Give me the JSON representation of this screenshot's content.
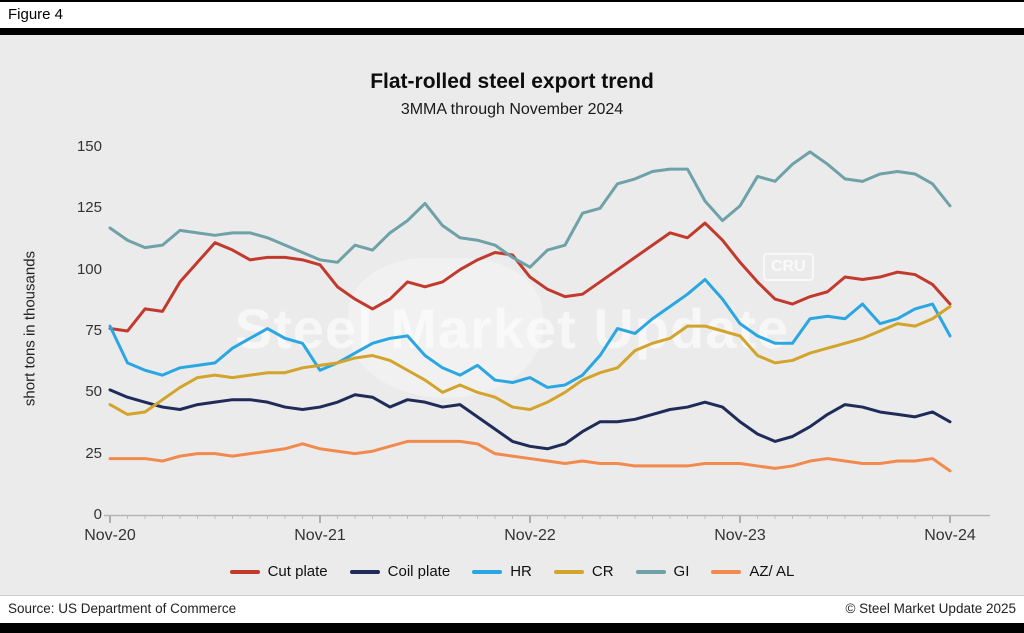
{
  "figure_label": "Figure 4",
  "watermark": {
    "text": "Steel Market Update",
    "logo_text": "CRU"
  },
  "footer": {
    "source": "Source: US Department of Commerce",
    "copyright": "© Steel Market Update 2025"
  },
  "chart_data": {
    "type": "line",
    "title": "Flat-rolled steel export trend",
    "subtitle": "3MMA through November 2024",
    "ylabel": "short tons in thousands",
    "ylim": [
      0,
      150
    ],
    "y_ticks": [
      0,
      25,
      50,
      75,
      100,
      125,
      150
    ],
    "x_tick_labels": [
      "Nov-20",
      "Nov-21",
      "Nov-22",
      "Nov-23",
      "Nov-24"
    ],
    "x_tick_indices": [
      0,
      12,
      24,
      36,
      48
    ],
    "months_span": 48,
    "grid": false,
    "legend_position": "bottom",
    "background_color": "#ebebeb",
    "series": [
      {
        "name": "Cut plate",
        "color": "#c13a2d",
        "values": [
          76,
          75,
          84,
          83,
          95,
          103,
          111,
          108,
          104,
          105,
          105,
          104,
          102,
          93,
          88,
          84,
          88,
          95,
          93,
          95,
          100,
          104,
          107,
          106,
          97,
          92,
          89,
          90,
          95,
          100,
          105,
          110,
          115,
          113,
          119,
          112,
          103,
          95,
          88,
          86,
          89,
          91,
          97,
          96,
          97,
          99,
          98,
          94,
          86
        ]
      },
      {
        "name": "Coil plate",
        "color": "#1f2b58",
        "values": [
          51,
          48,
          46,
          44,
          43,
          45,
          46,
          47,
          47,
          46,
          44,
          43,
          44,
          46,
          49,
          48,
          44,
          47,
          46,
          44,
          45,
          40,
          35,
          30,
          28,
          27,
          29,
          34,
          38,
          38,
          39,
          41,
          43,
          44,
          46,
          44,
          38,
          33,
          30,
          32,
          36,
          41,
          45,
          44,
          42,
          41,
          40,
          42,
          38
        ]
      },
      {
        "name": "HR",
        "color": "#2aa7e2",
        "values": [
          77,
          62,
          59,
          57,
          60,
          61,
          62,
          68,
          72,
          76,
          72,
          70,
          59,
          62,
          66,
          70,
          72,
          73,
          65,
          60,
          57,
          61,
          55,
          54,
          56,
          52,
          53,
          57,
          65,
          76,
          74,
          80,
          85,
          90,
          96,
          88,
          78,
          73,
          70,
          70,
          80,
          81,
          80,
          86,
          78,
          80,
          84,
          86,
          73
        ]
      },
      {
        "name": "CR",
        "color": "#d3a42b",
        "values": [
          45,
          41,
          42,
          47,
          52,
          56,
          57,
          56,
          57,
          58,
          58,
          60,
          61,
          62,
          64,
          65,
          63,
          59,
          55,
          50,
          53,
          50,
          48,
          44,
          43,
          46,
          50,
          55,
          58,
          60,
          67,
          70,
          72,
          77,
          77,
          75,
          73,
          65,
          62,
          63,
          66,
          68,
          70,
          72,
          75,
          78,
          77,
          80,
          85
        ]
      },
      {
        "name": "GI",
        "color": "#6fa1a8",
        "values": [
          117,
          112,
          109,
          110,
          116,
          115,
          114,
          115,
          115,
          113,
          110,
          107,
          104,
          103,
          110,
          108,
          115,
          120,
          127,
          118,
          113,
          112,
          110,
          105,
          101,
          108,
          110,
          123,
          125,
          135,
          137,
          140,
          141,
          141,
          128,
          120,
          126,
          138,
          136,
          143,
          148,
          143,
          137,
          136,
          139,
          140,
          139,
          135,
          126
        ]
      },
      {
        "name": "AZ/ AL",
        "color": "#f28a4d",
        "values": [
          23,
          23,
          23,
          22,
          24,
          25,
          25,
          24,
          25,
          26,
          27,
          29,
          27,
          26,
          25,
          26,
          28,
          30,
          30,
          30,
          30,
          29,
          25,
          24,
          23,
          22,
          21,
          22,
          21,
          21,
          20,
          20,
          20,
          20,
          21,
          21,
          21,
          20,
          19,
          20,
          22,
          23,
          22,
          21,
          21,
          22,
          22,
          23,
          18
        ]
      }
    ]
  }
}
